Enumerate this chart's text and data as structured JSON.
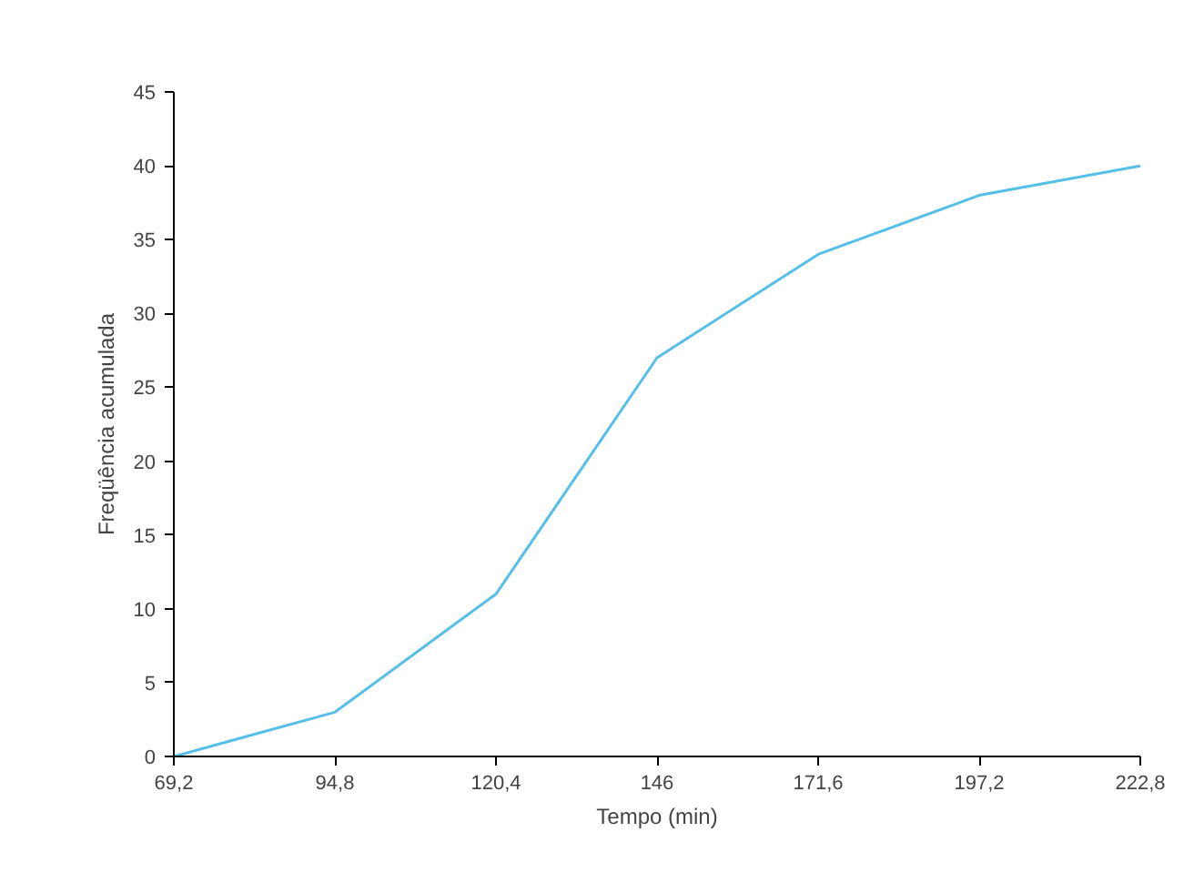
{
  "chart_data": {
    "type": "line",
    "xlabel": "Tempo (min)",
    "ylabel": "Freqüência acumulada",
    "x": [
      69.2,
      94.8,
      120.4,
      146,
      171.6,
      197.2,
      222.8
    ],
    "series": [
      {
        "color": "#55bfe8",
        "values": [
          0,
          3,
          11,
          27,
          34,
          38,
          40
        ]
      }
    ],
    "xlim": [
      69.2,
      222.8
    ],
    "xticks": [
      {
        "value": 69.2,
        "label": "69,2"
      },
      {
        "value": 94.8,
        "label": "94,8"
      },
      {
        "value": 120.4,
        "label": "120,4"
      },
      146,
      {
        "value": 171.6,
        "label": "171,6"
      },
      {
        "value": 197.2,
        "label": "197,2"
      },
      {
        "value": 222.8,
        "label": "222,8"
      }
    ],
    "ylim": [
      0,
      45
    ],
    "yticks": [
      0,
      5,
      10,
      15,
      20,
      25,
      30,
      35,
      40,
      45
    ],
    "grid": false,
    "marker": "none",
    "line_style": "solid"
  }
}
